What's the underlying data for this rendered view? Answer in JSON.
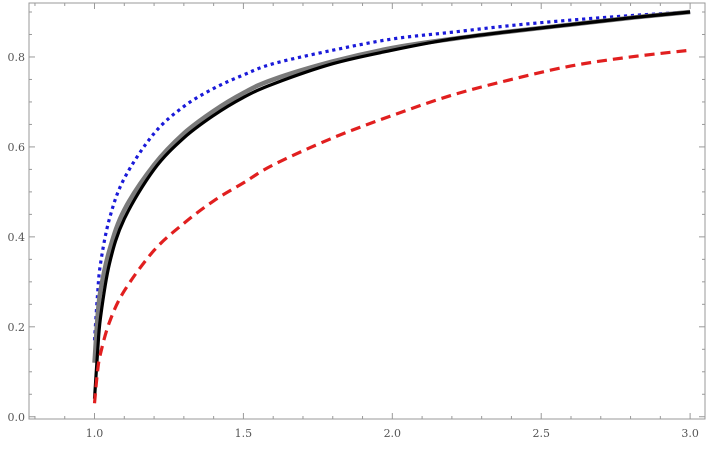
{
  "chart_data": {
    "type": "line",
    "title": "",
    "xlabel": "",
    "ylabel": "",
    "xlim": [
      0.78,
      3.05
    ],
    "ylim": [
      -0.005,
      0.92
    ],
    "grid": false,
    "x_ticks": [
      {
        "value": 1.0,
        "label": "1.0"
      },
      {
        "value": 1.5,
        "label": "1.5"
      },
      {
        "value": 2.0,
        "label": "2.0"
      },
      {
        "value": 2.5,
        "label": "2.5"
      },
      {
        "value": 3.0,
        "label": "3.0"
      }
    ],
    "y_ticks": [
      {
        "value": 0.0,
        "label": "0.0"
      },
      {
        "value": 0.2,
        "label": "0.2"
      },
      {
        "value": 0.4,
        "label": "0.4"
      },
      {
        "value": 0.6,
        "label": "0.6"
      },
      {
        "value": 0.8,
        "label": "0.8"
      }
    ],
    "series": [
      {
        "style": "dotted",
        "color": "#1a1ad9",
        "x": [
          1.0,
          1.01,
          1.02,
          1.05,
          1.1,
          1.2,
          1.3,
          1.4,
          1.5,
          1.6,
          1.8,
          2.0,
          2.2,
          2.4,
          2.6,
          2.8,
          3.0
        ],
        "y": [
          0.17,
          0.27,
          0.34,
          0.44,
          0.53,
          0.63,
          0.69,
          0.73,
          0.76,
          0.785,
          0.815,
          0.84,
          0.855,
          0.87,
          0.882,
          0.892,
          0.9
        ]
      },
      {
        "style": "solid-thick",
        "color": "#7a7a7a",
        "x": [
          1.0,
          1.01,
          1.02,
          1.05,
          1.1,
          1.2,
          1.3,
          1.4,
          1.5,
          1.6,
          1.8,
          2.0,
          2.2,
          2.4,
          2.6,
          2.8,
          3.0
        ],
        "y": [
          0.12,
          0.22,
          0.28,
          0.37,
          0.46,
          0.56,
          0.63,
          0.68,
          0.72,
          0.75,
          0.79,
          0.82,
          0.84,
          0.857,
          0.872,
          0.887,
          0.9
        ]
      },
      {
        "style": "solid",
        "color": "#000000",
        "x": [
          1.0,
          1.01,
          1.02,
          1.05,
          1.1,
          1.2,
          1.3,
          1.4,
          1.5,
          1.6,
          1.8,
          2.0,
          2.2,
          2.4,
          2.6,
          2.8,
          3.0
        ],
        "y": [
          0.04,
          0.14,
          0.22,
          0.34,
          0.44,
          0.55,
          0.62,
          0.67,
          0.71,
          0.74,
          0.785,
          0.815,
          0.84,
          0.857,
          0.872,
          0.887,
          0.9
        ]
      },
      {
        "style": "dashed",
        "color": "#e11f1f",
        "x": [
          1.0,
          1.01,
          1.02,
          1.05,
          1.1,
          1.2,
          1.3,
          1.4,
          1.5,
          1.6,
          1.8,
          2.0,
          2.2,
          2.4,
          2.6,
          2.8,
          3.0
        ],
        "y": [
          0.03,
          0.1,
          0.14,
          0.21,
          0.28,
          0.37,
          0.43,
          0.48,
          0.52,
          0.56,
          0.62,
          0.67,
          0.715,
          0.75,
          0.78,
          0.8,
          0.815
        ]
      }
    ]
  }
}
